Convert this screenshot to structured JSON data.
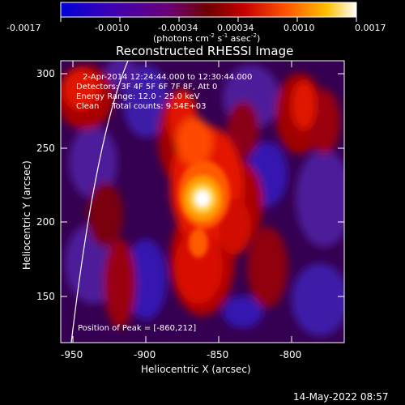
{
  "colorbar": {
    "tick_labels": [
      "-0.0017",
      "-0.0010",
      "-0.00034",
      "0.00034",
      "0.0010",
      "0.0017"
    ],
    "units_main": "(photons cm",
    "units_exp1": "-2",
    "units_mid": " s",
    "units_exp2": "-1",
    "units_tail": " asec",
    "units_exp3": "-2",
    "units_close": ")"
  },
  "plot": {
    "title": "Reconstructed RHESSI Image",
    "xlabel": "Heliocentric X (arcsec)",
    "ylabel": "Heliocentric Y (arcsec)",
    "x_ticks": [
      "-950",
      "-900",
      "-850",
      "-800"
    ],
    "y_ticks": [
      "300",
      "250",
      "200",
      "150"
    ],
    "info_lines": [
      "2-Apr-2014 12:24:44.000 to 12:30:44.000",
      "Detectors: 3F 4F 5F 6F 7F 8F, Att 0",
      "Energy Range: 12.0 - 25.0 keV",
      "Clean     Total counts: 9.54E+03"
    ],
    "peak_label": "Position of Peak = [-860,212]"
  },
  "footer": {
    "timestamp": "14-May-2022 08:57"
  }
}
